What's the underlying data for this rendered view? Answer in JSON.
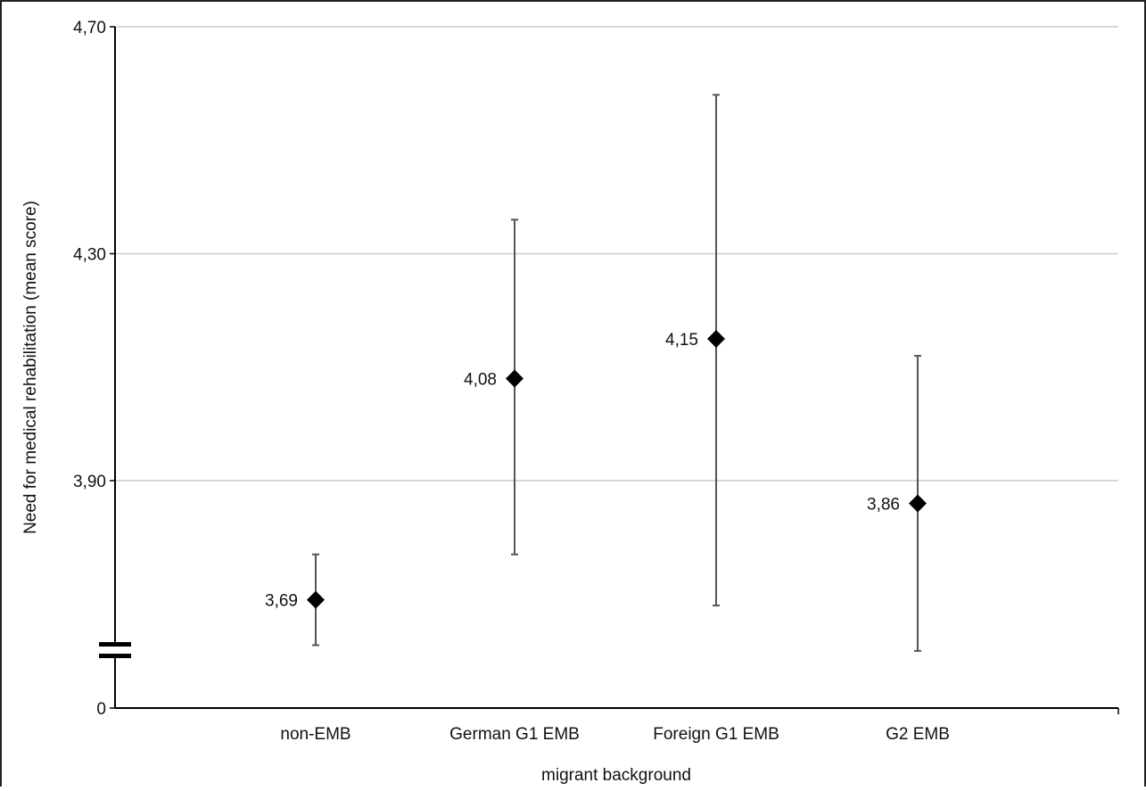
{
  "chart_data": {
    "type": "scatter",
    "title": "",
    "xlabel": "migrant background",
    "ylabel": "Need for medical rehabilitation (mean score)",
    "categories": [
      "non-EMB",
      "German G1 EMB",
      "Foreign G1 EMB",
      "G2 EMB"
    ],
    "values": [
      3.69,
      4.08,
      4.15,
      3.86
    ],
    "value_labels": [
      "3,69",
      "4,08",
      "4,15",
      "3,86"
    ],
    "error_low": [
      3.61,
      3.77,
      3.68,
      3.6
    ],
    "error_high": [
      3.77,
      4.36,
      4.58,
      4.12
    ],
    "y_ticks": [
      {
        "value": 4.7,
        "label": "4,70"
      },
      {
        "value": 4.3,
        "label": "4,30"
      },
      {
        "value": 3.9,
        "label": "3,90"
      },
      {
        "value": 0,
        "label": "0"
      }
    ],
    "ylim": [
      3.5,
      4.7
    ],
    "axis_break": true,
    "grid": true,
    "marker": "diamond",
    "colors": {
      "marker": "#000000",
      "errorbar": "#555555",
      "grid": "#cccccc",
      "axis": "#000000"
    }
  }
}
